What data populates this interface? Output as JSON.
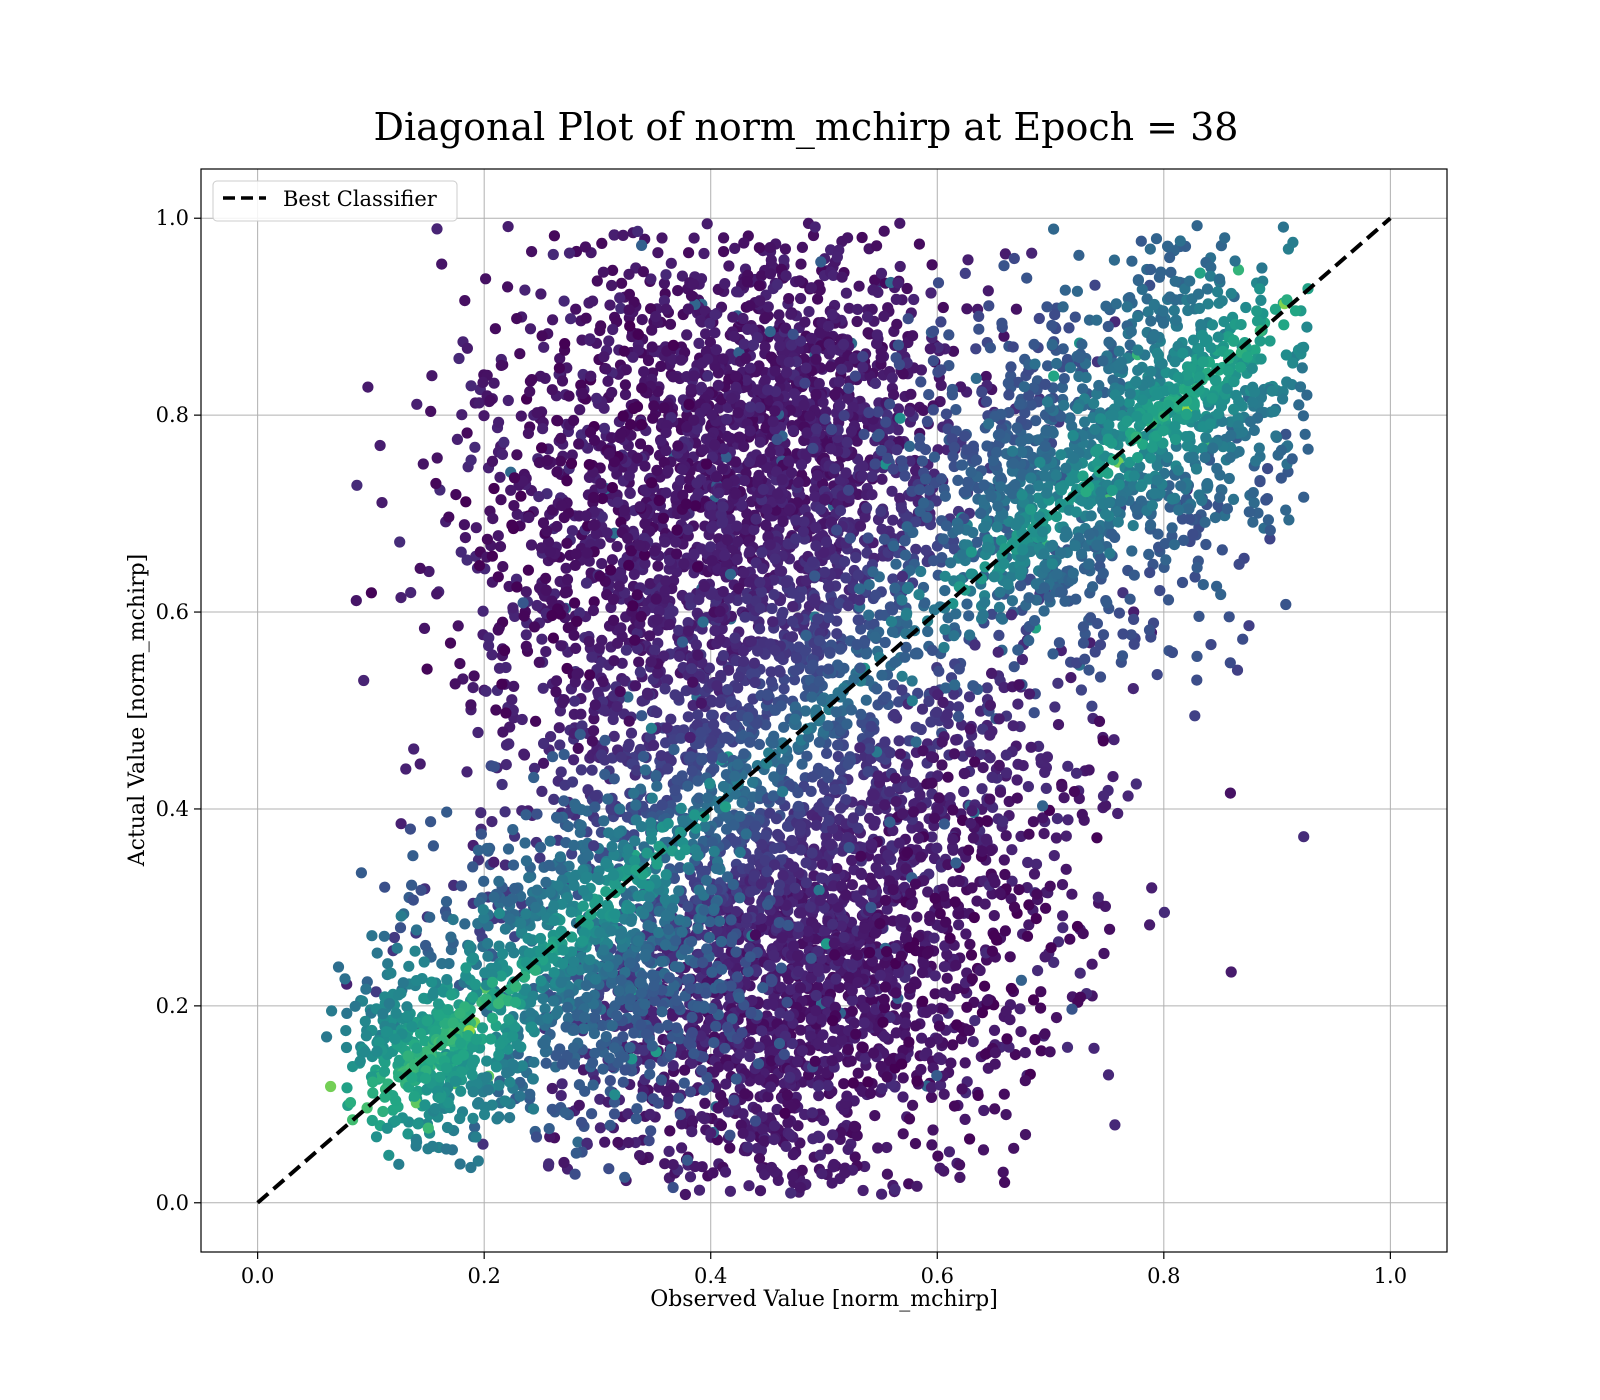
{
  "chart_data": {
    "type": "scatter",
    "title": "Diagonal Plot of norm_mchirp at Epoch = 38",
    "xlabel": "Observed Value [norm_mchirp]",
    "ylabel": "Actual Value [norm_mchirp]",
    "xlim": [
      -0.05,
      1.05
    ],
    "ylim": [
      -0.05,
      1.05
    ],
    "x_ticks": [
      0.0,
      0.2,
      0.4,
      0.6,
      0.8,
      1.0
    ],
    "y_ticks": [
      0.0,
      0.2,
      0.4,
      0.6,
      0.8,
      1.0
    ],
    "x_tick_labels": [
      "0.0",
      "0.2",
      "0.4",
      "0.6",
      "0.8",
      "1.0"
    ],
    "y_tick_labels": [
      "0.0",
      "0.2",
      "0.4",
      "0.6",
      "0.8",
      "1.0"
    ],
    "grid": true,
    "legend": {
      "placement": "upper-left",
      "entries": [
        "Best Classifier"
      ]
    },
    "reference_line": {
      "name": "Best Classifier",
      "style": "dashed",
      "color": "#000000",
      "x": [
        0.0,
        1.0
      ],
      "y": [
        0.0,
        1.0
      ]
    },
    "colormap": "viridis",
    "color_range_observed": [
      0.0,
      0.75
    ],
    "point_clusters": [
      {
        "cx": 0.45,
        "cy": 0.78,
        "sx": 0.085,
        "sy": 0.12,
        "n": 1500,
        "color_level": 0.06
      },
      {
        "cx": 0.45,
        "cy": 0.22,
        "sx": 0.085,
        "sy": 0.12,
        "n": 1500,
        "color_level": 0.06
      },
      {
        "cx": 0.38,
        "cy": 0.55,
        "sx": 0.11,
        "sy": 0.2,
        "n": 1200,
        "color_level": 0.09
      },
      {
        "cx": 0.52,
        "cy": 0.45,
        "sx": 0.11,
        "sy": 0.2,
        "n": 1200,
        "color_level": 0.09
      },
      {
        "cx": 0.3,
        "cy": 0.25,
        "sx": 0.07,
        "sy": 0.08,
        "n": 900,
        "color_level": 0.25
      },
      {
        "cx": 0.7,
        "cy": 0.72,
        "sx": 0.08,
        "sy": 0.09,
        "n": 900,
        "color_level": 0.22
      },
      {
        "cx": 0.82,
        "cy": 0.83,
        "sx": 0.06,
        "sy": 0.07,
        "n": 600,
        "color_level": 0.3
      },
      {
        "cx": 0.16,
        "cy": 0.15,
        "sx": 0.04,
        "sy": 0.05,
        "n": 450,
        "color_level": 0.35
      },
      {
        "cx": 0.28,
        "cy": 0.7,
        "sx": 0.06,
        "sy": 0.14,
        "n": 300,
        "color_level": 0.03
      },
      {
        "cx": 0.62,
        "cy": 0.3,
        "sx": 0.06,
        "sy": 0.14,
        "n": 300,
        "color_level": 0.03
      }
    ]
  },
  "colors": {
    "background": "#ffffff",
    "grid": "#b0b0b0",
    "axes": "#000000",
    "reference_line": "#000000",
    "legend_border": "#cccccc"
  }
}
